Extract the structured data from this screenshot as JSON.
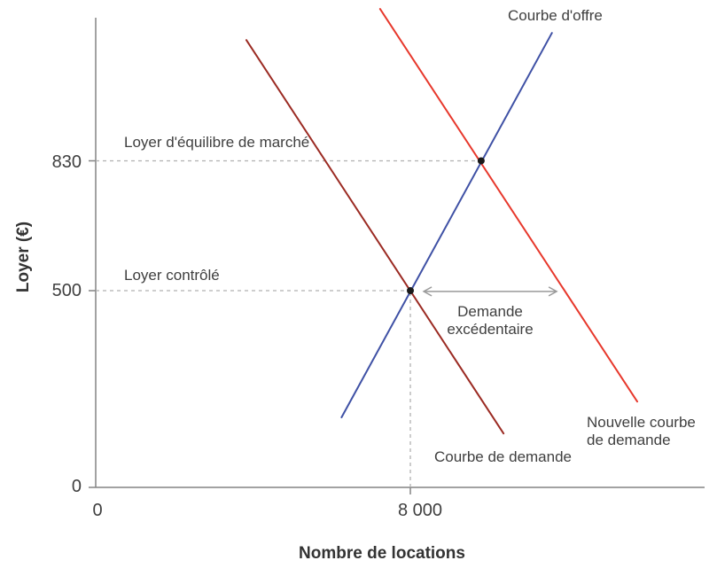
{
  "figure": {
    "background": "#ffffff",
    "text_color": "#3f3f3f",
    "axis_color": "#848484",
    "guide_color": "#b0b0b0",
    "arrow_color": "#9a9a9a",
    "point_color": "#1a1a1a"
  },
  "chart_data": {
    "type": "line",
    "title": "",
    "xlabel": "Nombre de locations",
    "ylabel": "Loyer (€)",
    "xlim": [
      0,
      15500
    ],
    "ylim": [
      0,
      1195
    ],
    "grid": false,
    "legend": "inline-annotations",
    "x_ticks": [
      {
        "value": 0,
        "label": "0"
      },
      {
        "value": 8000,
        "label": "8 000"
      }
    ],
    "y_ticks": [
      {
        "value": 0,
        "label": "0"
      },
      {
        "value": 500,
        "label": "500"
      },
      {
        "value": 830,
        "label": "830"
      }
    ],
    "series": [
      {
        "name": "supply-curve",
        "label": "Courbe d'offre",
        "color": "#3f51a5",
        "points": [
          [
            6250,
            178
          ],
          [
            11600,
            1155
          ]
        ]
      },
      {
        "name": "demand-curve",
        "label": "Courbe de demande",
        "color": "#9b2b23",
        "points": [
          [
            3830,
            1137
          ],
          [
            10370,
            137
          ]
        ]
      },
      {
        "name": "new-demand-curve",
        "label": "Nouvelle courbe de demande",
        "color": "#e7382c",
        "points": [
          [
            7230,
            1216
          ],
          [
            13770,
            218
          ]
        ]
      }
    ],
    "key_points": [
      {
        "name": "market-equilibrium-point",
        "x": 9800,
        "y": 830
      },
      {
        "name": "controlled-rent-point",
        "x": 8000,
        "y": 500
      }
    ],
    "guides": [
      {
        "name": "equilibrium-rent-guide",
        "type": "h",
        "y": 830,
        "x_from": 0,
        "x_to": 9800
      },
      {
        "name": "controlled-rent-guide",
        "type": "h",
        "y": 500,
        "x_from": 0,
        "x_to": 8000
      },
      {
        "name": "controlled-quantity-guide",
        "type": "v",
        "x": 8000,
        "y_from": 0,
        "y_to": 500
      }
    ],
    "arrow": {
      "name": "excess-demand-arrow",
      "y": 498,
      "x_from": 8340,
      "x_to": 11720
    },
    "annotations": {
      "supply": "Courbe d'offre",
      "equilibrium_rent": "Loyer d'équilibre de marché",
      "controlled_rent": "Loyer contrôlé",
      "excess_demand": "Demande excédentaire",
      "demand": "Courbe de demande",
      "new_demand": "Nouvelle courbe de demande"
    }
  }
}
